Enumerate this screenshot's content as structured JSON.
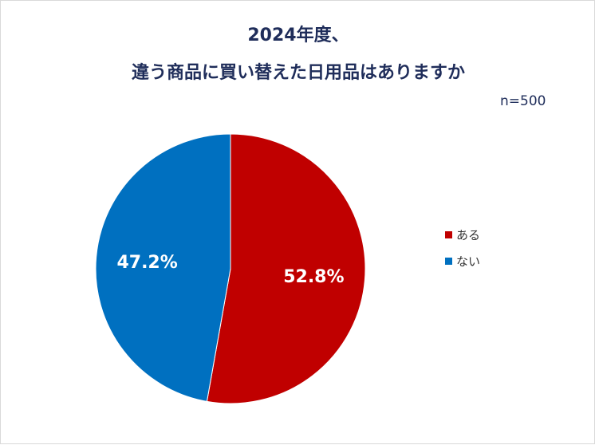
{
  "chart_data": {
    "type": "pie",
    "title": "2024年度、",
    "subtitle": "違う商品に買い替えた日用品はありますか",
    "sample_size_label": "n=500",
    "categories": [
      "ある",
      "ない"
    ],
    "values": [
      52.8,
      47.2
    ],
    "value_labels": [
      "52.8%",
      "47.2%"
    ],
    "colors": [
      "#C00000",
      "#0070C0"
    ],
    "legend_position": "right",
    "start_angle": "12 o'clock, clockwise"
  }
}
